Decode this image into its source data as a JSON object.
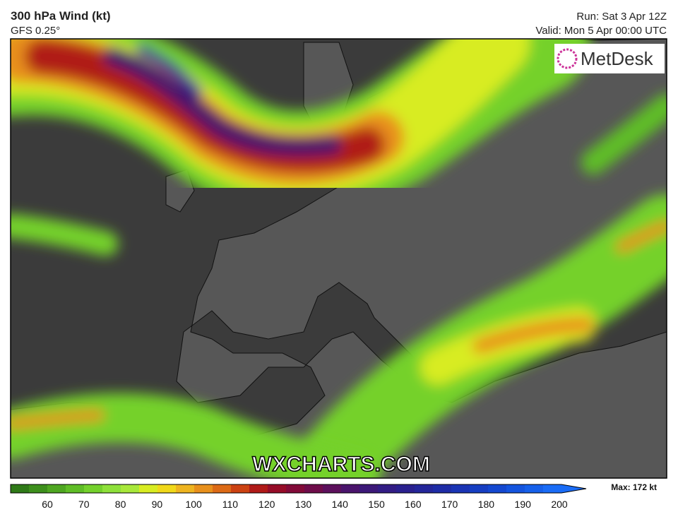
{
  "header": {
    "title": "300 hPa Wind (kt)",
    "model": "GFS 0.25°",
    "run": "Run: Sat 3 Apr 12Z",
    "valid": "Valid: Mon 5 Apr 00:00 UTC"
  },
  "logo": "MetDesk",
  "watermark": "WXCHARTS.COM",
  "colorbar": {
    "ticks": [
      60,
      70,
      80,
      90,
      100,
      110,
      120,
      130,
      140,
      150,
      160,
      170,
      180,
      190,
      200
    ],
    "max_label": "Max: 172 kt",
    "colors": [
      "#2f7a18",
      "#3d8f1c",
      "#4ea621",
      "#5fbd26",
      "#74d12c",
      "#8ee03a",
      "#a8e83a",
      "#d8ec22",
      "#f0d81a",
      "#eeb420",
      "#e8901c",
      "#dc6a16",
      "#cc4212",
      "#b01a18",
      "#960c28",
      "#820a38",
      "#6e0c4a",
      "#5c105c",
      "#4a146c",
      "#3c1878",
      "#321c84",
      "#2a208e",
      "#24269a",
      "#1e2ca6",
      "#1a34b4",
      "#163ec2",
      "#1448d0",
      "#1454de",
      "#1660ea",
      "#1a6cf6"
    ]
  }
}
